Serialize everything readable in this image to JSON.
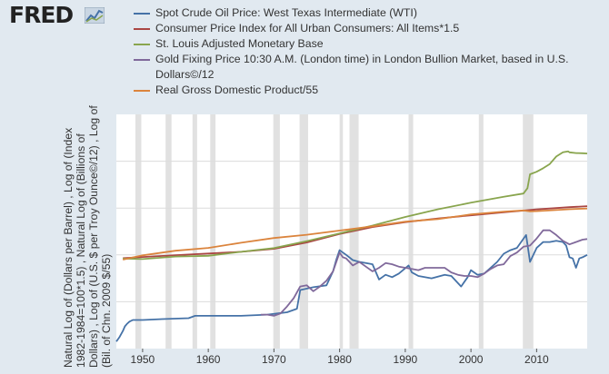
{
  "header": {
    "logo_text": "FRED",
    "logo_icon": "line-chart-icon"
  },
  "legend": [
    {
      "label": "Spot Crude Oil Price: West Texas Intermediate (WTI)",
      "color": "#4572a7"
    },
    {
      "label": "Consumer Price Index for All Urban Consumers: All Items*1.5",
      "color": "#aa4643"
    },
    {
      "label": "St. Louis Adjusted Monetary Base",
      "color": "#89a54e"
    },
    {
      "label": "Gold Fixing Price 10:30 A.M. (London time) in London Bullion Market, based in U.S. Dollars©/12",
      "color": "#80699b"
    },
    {
      "label": "Real Gross Domestic Product/55",
      "color": "#db843d"
    }
  ],
  "yaxis_label": {
    "line1": "Natural Log of (Dollars per Barrel) , Log of (Index",
    "line2": "1982-1984=100*1.5) , Natural Log of (Billions of",
    "line3": "Dollars) , Log of (U.S. $ per Troy Ounce©/12) , Log of",
    "line4": "(Bil. of Chn. 2009 $/55)"
  },
  "chart_data": {
    "type": "line",
    "title": "",
    "xlabel": "",
    "ylabel": "Natural Log of (Dollars per Barrel) , Log of (Index 1982-1984=100*1.5) , Natural Log of (Billions of Dollars) , Log of (U.S. $ per Troy Ounce©/12) , Log of (Bil. of Chn. 2009 $/55)",
    "xlim": [
      1946.0,
      2017.7
    ],
    "ylim": [
      0,
      10
    ],
    "x_ticks": [
      1950,
      1960,
      1970,
      1980,
      1990,
      2000,
      2010
    ],
    "x_tick_labels": [
      "1950",
      "1960",
      "1970",
      "1980",
      "1990",
      "2000",
      "2010"
    ],
    "recessions": [
      [
        1948.9,
        1949.8
      ],
      [
        1953.5,
        1954.4
      ],
      [
        1957.6,
        1958.3
      ],
      [
        1960.3,
        1961.1
      ],
      [
        1969.9,
        1970.9
      ],
      [
        1973.9,
        1975.2
      ],
      [
        1980.0,
        1980.5
      ],
      [
        1981.5,
        1982.9
      ],
      [
        1990.5,
        1991.2
      ],
      [
        2001.2,
        2001.9
      ],
      [
        2007.9,
        2009.5
      ]
    ],
    "series": [
      {
        "name": "Spot Crude Oil Price: West Texas Intermediate (WTI)",
        "color": "#4572a7",
        "x": [
          1946.0,
          1946.5,
          1947.0,
          1947.3,
          1947.6,
          1948.0,
          1948.5,
          1950.0,
          1953.0,
          1957.0,
          1958.0,
          1960.0,
          1965.0,
          1969.0,
          1970.5,
          1972.0,
          1973.5,
          1974.0,
          1976.0,
          1978.0,
          1979.0,
          1979.5,
          1980.0,
          1980.5,
          1981.0,
          1982.0,
          1983.0,
          1984.0,
          1985.0,
          1986.0,
          1986.5,
          1987.0,
          1988.0,
          1989.0,
          1990.5,
          1991.0,
          1992.0,
          1994.0,
          1996.0,
          1997.0,
          1998.5,
          1999.5,
          2000.0,
          2001.0,
          2002.0,
          2003.0,
          2004.0,
          2005.0,
          2006.0,
          2007.0,
          2008.4,
          2009.0,
          2010.0,
          2011.0,
          2012.0,
          2013.0,
          2014.0,
          2014.5,
          2015.0,
          2015.5,
          2016.0,
          2016.5,
          2017.0,
          2017.7
        ],
        "y": [
          0.3,
          0.5,
          0.75,
          0.95,
          1.05,
          1.15,
          1.22,
          1.22,
          1.26,
          1.3,
          1.4,
          1.4,
          1.4,
          1.45,
          1.5,
          1.55,
          1.7,
          2.5,
          2.62,
          2.7,
          3.3,
          3.8,
          4.2,
          4.1,
          4.0,
          3.78,
          3.7,
          3.65,
          3.6,
          2.95,
          3.05,
          3.15,
          3.05,
          3.2,
          3.55,
          3.25,
          3.1,
          3.0,
          3.15,
          3.1,
          2.65,
          3.05,
          3.35,
          3.15,
          3.2,
          3.45,
          3.7,
          4.05,
          4.2,
          4.3,
          4.85,
          3.7,
          4.3,
          4.55,
          4.55,
          4.6,
          4.55,
          4.4,
          3.9,
          3.85,
          3.45,
          3.85,
          3.9,
          4.0
        ]
      },
      {
        "name": "Consumer Price Index for All Urban Consumers: All Items*1.5",
        "color": "#aa4643",
        "x": [
          1947.0,
          1950.0,
          1955.0,
          1960.0,
          1965.0,
          1970.0,
          1975.0,
          1980.0,
          1985.0,
          1990.0,
          1995.0,
          2000.0,
          2005.0,
          2010.0,
          2015.0,
          2017.7
        ],
        "y": [
          3.86,
          3.91,
          3.99,
          4.06,
          4.13,
          4.26,
          4.53,
          4.89,
          5.19,
          5.4,
          5.56,
          5.69,
          5.82,
          5.94,
          6.04,
          6.08
        ]
      },
      {
        "name": "St. Louis Adjusted Monetary Base",
        "color": "#89a54e",
        "x": [
          1947.0,
          1950.0,
          1955.0,
          1960.0,
          1965.0,
          1970.0,
          1975.0,
          1980.0,
          1985.0,
          1990.0,
          1995.0,
          2000.0,
          2005.0,
          2008.0,
          2008.6,
          2009.0,
          2010.0,
          2011.0,
          2012.0,
          2013.0,
          2014.0,
          2014.8,
          2015.0,
          2016.0,
          2017.0,
          2017.7
        ],
        "y": [
          3.84,
          3.82,
          3.93,
          3.96,
          4.13,
          4.29,
          4.59,
          4.92,
          5.25,
          5.62,
          5.95,
          6.23,
          6.48,
          6.62,
          6.85,
          7.44,
          7.55,
          7.7,
          7.88,
          8.2,
          8.38,
          8.42,
          8.38,
          8.35,
          8.34,
          8.33
        ]
      },
      {
        "name": "Gold Fixing Price 10:30 A.M. (London time) in London Bullion Market, based in U.S. Dollars©/12",
        "color": "#80699b",
        "x": [
          1968.0,
          1969.0,
          1970.0,
          1971.0,
          1972.0,
          1973.0,
          1974.0,
          1975.0,
          1976.0,
          1977.0,
          1978.0,
          1979.0,
          1980.0,
          1980.5,
          1981.0,
          1982.0,
          1983.0,
          1984.0,
          1985.0,
          1986.0,
          1987.0,
          1988.0,
          1989.0,
          1990.0,
          1991.0,
          1992.0,
          1993.0,
          1994.0,
          1995.0,
          1996.0,
          1997.0,
          1998.0,
          1999.0,
          2000.0,
          2001.0,
          2002.0,
          2003.0,
          2004.0,
          2005.0,
          2006.0,
          2007.0,
          2008.0,
          2009.0,
          2010.0,
          2011.0,
          2012.0,
          2013.0,
          2014.0,
          2015.0,
          2016.0,
          2017.0,
          2017.7
        ],
        "y": [
          1.45,
          1.45,
          1.4,
          1.5,
          1.8,
          2.15,
          2.65,
          2.7,
          2.45,
          2.65,
          2.9,
          3.3,
          4.1,
          3.9,
          3.85,
          3.55,
          3.7,
          3.5,
          3.3,
          3.45,
          3.65,
          3.6,
          3.5,
          3.45,
          3.4,
          3.35,
          3.45,
          3.45,
          3.45,
          3.45,
          3.25,
          3.15,
          3.1,
          3.1,
          3.05,
          3.2,
          3.4,
          3.55,
          3.6,
          3.95,
          4.1,
          4.35,
          4.4,
          4.7,
          5.05,
          5.05,
          4.85,
          4.6,
          4.45,
          4.55,
          4.65,
          4.68
        ]
      },
      {
        "name": "Real Gross Domestic Product/55",
        "color": "#db843d",
        "x": [
          1947.0,
          1950.0,
          1955.0,
          1960.0,
          1965.0,
          1970.0,
          1975.0,
          1980.0,
          1985.0,
          1990.0,
          1995.0,
          2000.0,
          2005.0,
          2008.0,
          2009.0,
          2010.0,
          2015.0,
          2017.7
        ],
        "y": [
          3.8,
          3.98,
          4.18,
          4.3,
          4.52,
          4.72,
          4.86,
          5.04,
          5.22,
          5.42,
          5.53,
          5.73,
          5.85,
          5.9,
          5.86,
          5.87,
          5.95,
          5.98
        ]
      }
    ]
  }
}
